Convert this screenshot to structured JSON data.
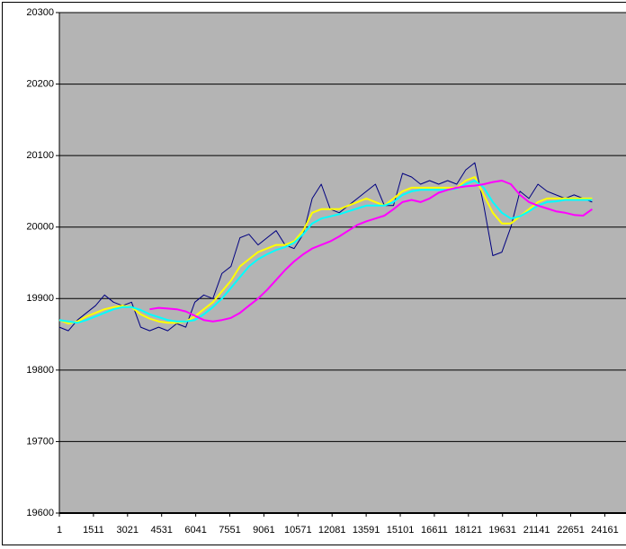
{
  "chart_data": {
    "type": "line",
    "x": [
      1,
      401,
      801,
      1201,
      1601,
      2001,
      2401,
      2801,
      3201,
      3601,
      4001,
      4401,
      4801,
      5201,
      5601,
      6001,
      6401,
      6801,
      7201,
      7601,
      8001,
      8401,
      8801,
      9201,
      9601,
      10001,
      10401,
      10801,
      11201,
      11601,
      12001,
      12401,
      12801,
      13201,
      13601,
      14001,
      14401,
      14801,
      15201,
      15601,
      16001,
      16401,
      16801,
      17201,
      17601,
      18001,
      18401,
      18801,
      19201,
      19601,
      20001,
      20401,
      20801,
      21201,
      21601,
      22001,
      22401,
      22801,
      23201,
      23601
    ],
    "series": [
      {
        "color": "#000080",
        "values": [
          19860,
          19855,
          19870,
          19880,
          19890,
          19905,
          19895,
          19890,
          19895,
          19860,
          19855,
          19860,
          19855,
          19865,
          19860,
          19895,
          19905,
          19900,
          19935,
          19945,
          19985,
          19990,
          19975,
          19985,
          19995,
          19975,
          19970,
          19990,
          20040,
          20060,
          20025,
          20020,
          20030,
          20040,
          20050,
          20060,
          20030,
          20030,
          20075,
          20070,
          20060,
          20065,
          20060,
          20065,
          20060,
          20080,
          20090,
          20030,
          19960,
          19965,
          20000,
          20050,
          20040,
          20060,
          20050,
          20045,
          20040,
          20045,
          20040,
          20035
        ]
      },
      {
        "color": "#ffff00",
        "values": [
          19870,
          19865,
          19868,
          19875,
          19880,
          19885,
          19888,
          19890,
          19888,
          19878,
          19872,
          19868,
          19866,
          19866,
          19868,
          19875,
          19885,
          19895,
          19910,
          19925,
          19945,
          19955,
          19965,
          19970,
          19975,
          19975,
          19980,
          19995,
          20020,
          20025,
          20025,
          20025,
          20030,
          20035,
          20040,
          20035,
          20030,
          20040,
          20050,
          20055,
          20055,
          20055,
          20055,
          20055,
          20055,
          20065,
          20070,
          20045,
          20020,
          20005,
          20005,
          20015,
          20025,
          20035,
          20040,
          20040,
          20040,
          20040,
          20040,
          20040
        ]
      },
      {
        "color": "#00ffff",
        "values": [
          19870,
          19868,
          19866,
          19870,
          19875,
          19880,
          19885,
          19888,
          19888,
          19884,
          19878,
          19874,
          19870,
          19868,
          19868,
          19870,
          19878,
          19888,
          19900,
          19915,
          19930,
          19945,
          19955,
          19962,
          19968,
          19972,
          19978,
          19990,
          20005,
          20012,
          20015,
          20018,
          20022,
          20026,
          20030,
          20030,
          20030,
          20035,
          20045,
          20050,
          20052,
          20052,
          20052,
          20052,
          20054,
          20060,
          20065,
          20055,
          20035,
          20020,
          20012,
          20015,
          20022,
          20030,
          20035,
          20036,
          20038,
          20038,
          20038,
          20038
        ]
      },
      {
        "color": "#ff00ff",
        "values": [
          null,
          null,
          null,
          null,
          null,
          null,
          null,
          null,
          null,
          null,
          19885,
          19887,
          19886,
          19885,
          19882,
          19876,
          19870,
          19868,
          19870,
          19873,
          19880,
          19890,
          19900,
          19912,
          19926,
          19940,
          19952,
          19962,
          19970,
          19975,
          19980,
          19987,
          19995,
          20003,
          20008,
          20012,
          20016,
          20025,
          20035,
          20038,
          20035,
          20040,
          20048,
          20052,
          20055,
          20057,
          20058,
          20060,
          20063,
          20065,
          20060,
          20045,
          20035,
          20030,
          20026,
          20022,
          20020,
          20017,
          20016,
          20025
        ]
      }
    ],
    "xlim": [
      1,
      25100
    ],
    "xticks": [
      1,
      1511,
      3021,
      4531,
      6041,
      7551,
      9061,
      10571,
      12081,
      13591,
      15101,
      16611,
      18121,
      19631,
      21141,
      22651,
      24161
    ],
    "ylim": [
      19600,
      20300
    ],
    "yticks": [
      19600,
      19700,
      19800,
      19900,
      20000,
      20100,
      20200,
      20300
    ],
    "grid": true,
    "plot_color": "#b4b4b4"
  }
}
